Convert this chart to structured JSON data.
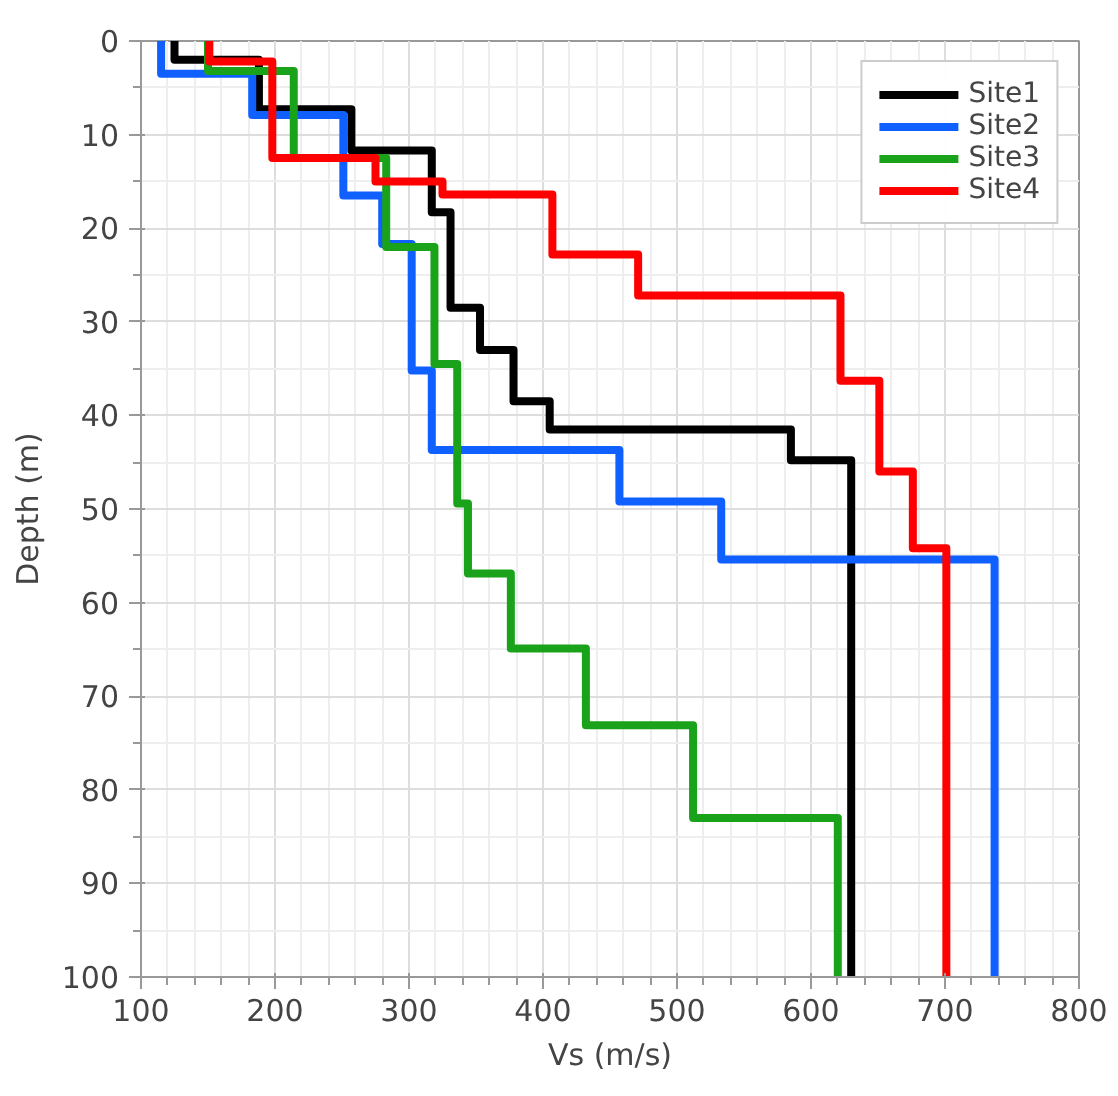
{
  "chart_data": {
    "type": "line",
    "xlabel": "Vs (m/s)",
    "ylabel": "Depth (m)",
    "xlim": [
      100,
      800
    ],
    "xticks": [
      100,
      200,
      300,
      400,
      500,
      600,
      700,
      800
    ],
    "ylim": [
      100,
      0
    ],
    "yticks": [
      0,
      10,
      20,
      30,
      40,
      50,
      60,
      70,
      80,
      90,
      100
    ],
    "grid": true,
    "legend": "top right",
    "line_style": "solid",
    "series": [
      {
        "name": "Site1",
        "color": "#000000",
        "x": [
          125,
          125,
          188,
          188,
          257,
          257,
          317,
          317,
          331,
          331,
          353,
          353,
          378,
          378,
          405,
          405,
          585,
          585,
          630,
          630
        ],
        "values": [
          0,
          2,
          2,
          7.3,
          7.3,
          11.7,
          11.7,
          18.3,
          18.3,
          28.5,
          28.5,
          33,
          33,
          38.5,
          38.5,
          41.5,
          41.5,
          44.8,
          44.8,
          100
        ]
      },
      {
        "name": "Site2",
        "color": "#1060ff",
        "x": [
          115,
          115,
          183,
          183,
          251,
          251,
          280,
          280,
          302,
          302,
          317,
          317,
          457,
          457,
          533,
          533,
          737,
          737
        ],
        "values": [
          0,
          3.5,
          3.5,
          7.9,
          7.9,
          16.5,
          16.5,
          21.7,
          21.7,
          35.2,
          35.2,
          43.7,
          43.7,
          49.2,
          49.2,
          55.4,
          55.4,
          100
        ]
      },
      {
        "name": "Site3",
        "color": "#1aa31a",
        "x": [
          150,
          150,
          214,
          214,
          283,
          283,
          319,
          319,
          336,
          336,
          344,
          344,
          376,
          376,
          432,
          432,
          512,
          512,
          620,
          620
        ],
        "values": [
          0,
          3.2,
          3.2,
          12.5,
          12.5,
          22,
          22,
          34.5,
          34.5,
          49.4,
          49.4,
          56.9,
          56.9,
          64.9,
          64.9,
          73.1,
          73.1,
          83,
          83,
          100
        ]
      },
      {
        "name": "Site4",
        "color": "#ff0000",
        "x": [
          151,
          151,
          198,
          198,
          275,
          275,
          325,
          325,
          407,
          407,
          471,
          471,
          622,
          622,
          651,
          651,
          676,
          676,
          701,
          701
        ],
        "values": [
          0,
          2.2,
          2.2,
          12.5,
          12.5,
          15,
          15,
          16.4,
          16.4,
          22.8,
          22.8,
          27.2,
          27.2,
          36.3,
          36.3,
          46,
          46,
          54.2,
          54.2,
          100
        ]
      }
    ]
  }
}
